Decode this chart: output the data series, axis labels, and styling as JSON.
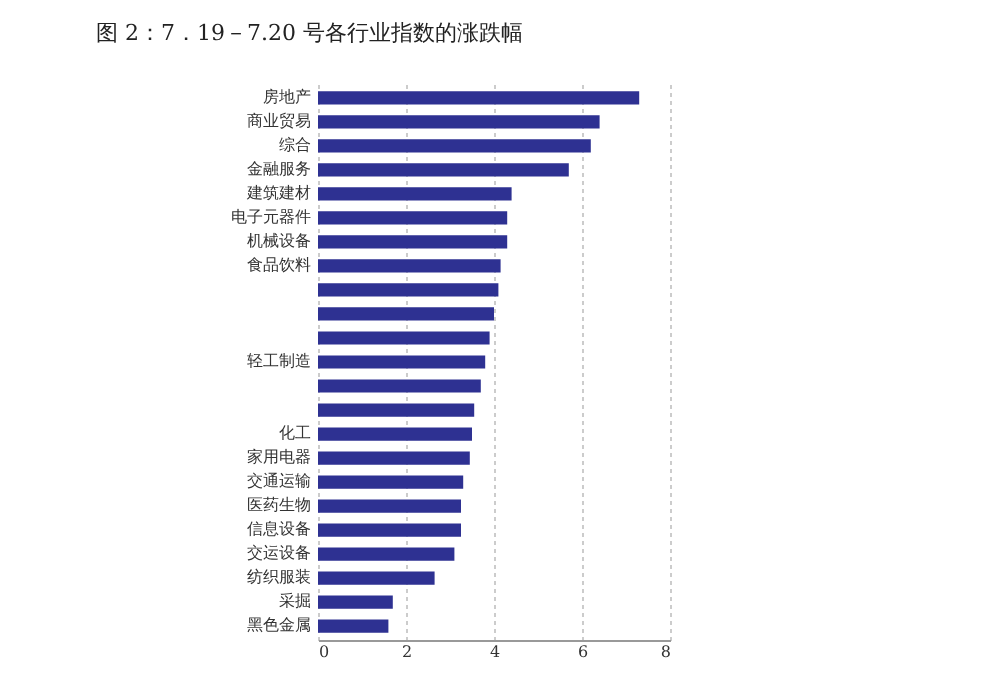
{
  "chart_data": {
    "type": "bar",
    "orientation": "horizontal",
    "title": "图 2：7．19－7.20 号各行业指数的涨跌幅",
    "categories": [
      "房地产",
      "商业贸易",
      "综合",
      "金融服务",
      "建筑建材",
      "电子元器件",
      "机械设备",
      "食品饮料",
      null,
      null,
      null,
      "轻工制造",
      null,
      null,
      "化工",
      "家用电器",
      "交通运输",
      "医药生物",
      "信息设备",
      "交运设备",
      "纺织服装",
      "采掘",
      "黑色金属"
    ],
    "values": [
      7.3,
      6.4,
      6.2,
      5.7,
      4.4,
      4.3,
      4.3,
      4.15,
      4.1,
      4.0,
      3.9,
      3.8,
      3.7,
      3.55,
      3.5,
      3.45,
      3.3,
      3.25,
      3.25,
      3.1,
      2.65,
      1.7,
      1.6
    ],
    "color": "#2e3192",
    "xlim": [
      0,
      8
    ],
    "xticks": [
      0,
      2,
      4,
      6,
      8
    ],
    "grid": "x"
  }
}
